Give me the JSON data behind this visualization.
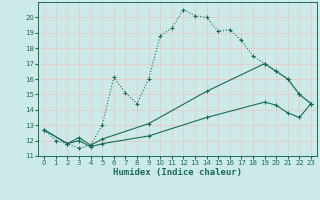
{
  "xlabel": "Humidex (Indice chaleur)",
  "bg_color": "#cceae8",
  "grid_color": "#e8c8c8",
  "line_color": "#1a6b5a",
  "xlim": [
    -0.5,
    23.5
  ],
  "ylim": [
    11,
    21
  ],
  "yticks": [
    11,
    12,
    13,
    14,
    15,
    16,
    17,
    18,
    19,
    20
  ],
  "xticks": [
    0,
    1,
    2,
    3,
    4,
    5,
    6,
    7,
    8,
    9,
    10,
    11,
    12,
    13,
    14,
    15,
    16,
    17,
    18,
    19,
    20,
    21,
    22,
    23
  ],
  "line1_x": [
    0,
    1,
    2,
    3,
    4,
    5,
    6,
    7,
    8,
    9,
    10,
    11,
    12,
    13,
    14,
    15,
    16,
    17,
    18,
    19,
    20,
    21,
    22,
    23
  ],
  "line1_y": [
    12.7,
    12.0,
    11.8,
    11.5,
    11.7,
    13.0,
    16.1,
    15.1,
    14.4,
    16.0,
    18.8,
    19.3,
    20.5,
    20.1,
    20.0,
    19.1,
    19.2,
    18.5,
    17.5,
    17.0,
    16.5,
    16.0,
    15.0,
    14.4
  ],
  "line2_x": [
    0,
    2,
    3,
    4,
    5,
    9,
    14,
    19,
    20,
    21,
    22,
    23
  ],
  "line2_y": [
    12.7,
    11.8,
    12.2,
    11.7,
    12.1,
    13.1,
    15.2,
    17.0,
    16.5,
    16.0,
    15.0,
    14.4
  ],
  "line3_x": [
    0,
    2,
    3,
    4,
    5,
    9,
    14,
    19,
    20,
    21,
    22,
    23
  ],
  "line3_y": [
    12.7,
    11.8,
    12.0,
    11.6,
    11.8,
    12.3,
    13.5,
    14.5,
    14.3,
    13.8,
    13.5,
    14.4
  ]
}
